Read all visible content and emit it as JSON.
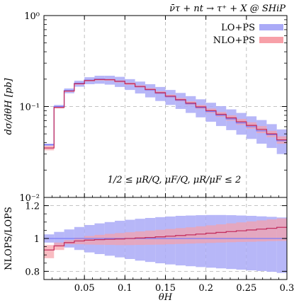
{
  "chart_data": [
    {
      "panel": "main",
      "type": "area",
      "title": "ν̄τ + nt → τ⁺ + X @ SHiP",
      "ylabel": "dσ/dθH [pb]",
      "yscale": "log",
      "ylim": [
        0.01,
        1
      ],
      "xlim": [
        0,
        0.3
      ],
      "y_ticks": [
        "10⁻²",
        "10⁻¹",
        "10⁰"
      ],
      "y_tick_values": [
        0.01,
        0.1,
        1
      ],
      "grid": true,
      "legend_position": "top-right",
      "annotation": "1/2 ≤ μR/Q, μF/Q, μR/μF ≤ 2",
      "x_bin_edges": [
        0,
        0.0125,
        0.025,
        0.0375,
        0.05,
        0.0625,
        0.075,
        0.0875,
        0.1,
        0.1125,
        0.125,
        0.1375,
        0.15,
        0.1625,
        0.175,
        0.1875,
        0.2,
        0.2125,
        0.225,
        0.2375,
        0.25,
        0.2625,
        0.275,
        0.2875,
        0.3
      ],
      "series": [
        {
          "name": "LO+PS",
          "color": "#7b7bf7",
          "band_color": "#aaaaf7",
          "central": [
            0.038,
            0.1,
            0.15,
            0.18,
            0.195,
            0.2,
            0.198,
            0.19,
            0.178,
            0.165,
            0.152,
            0.14,
            0.128,
            0.117,
            0.107,
            0.097,
            0.088,
            0.08,
            0.073,
            0.066,
            0.06,
            0.054,
            0.049,
            0.042
          ],
          "lower": [
            0.037,
            0.096,
            0.14,
            0.165,
            0.176,
            0.178,
            0.174,
            0.164,
            0.152,
            0.139,
            0.126,
            0.115,
            0.104,
            0.094,
            0.085,
            0.076,
            0.068,
            0.061,
            0.055,
            0.049,
            0.044,
            0.039,
            0.035,
            0.03
          ],
          "upper": [
            0.039,
            0.104,
            0.158,
            0.192,
            0.21,
            0.218,
            0.218,
            0.212,
            0.2,
            0.188,
            0.176,
            0.164,
            0.152,
            0.141,
            0.13,
            0.12,
            0.11,
            0.101,
            0.093,
            0.085,
            0.078,
            0.071,
            0.064,
            0.056
          ]
        },
        {
          "name": "NLO+PS",
          "color": "#c43060",
          "band_color": "#f7a0a8",
          "central": [
            0.035,
            0.098,
            0.148,
            0.178,
            0.193,
            0.198,
            0.197,
            0.189,
            0.178,
            0.166,
            0.154,
            0.142,
            0.13,
            0.119,
            0.109,
            0.099,
            0.09,
            0.082,
            0.075,
            0.068,
            0.062,
            0.056,
            0.05,
            0.043
          ],
          "lower": [
            0.033,
            0.095,
            0.145,
            0.174,
            0.189,
            0.193,
            0.192,
            0.184,
            0.173,
            0.161,
            0.149,
            0.137,
            0.125,
            0.114,
            0.104,
            0.094,
            0.085,
            0.077,
            0.07,
            0.063,
            0.057,
            0.051,
            0.046,
            0.039
          ],
          "upper": [
            0.037,
            0.101,
            0.151,
            0.182,
            0.197,
            0.203,
            0.202,
            0.194,
            0.183,
            0.171,
            0.159,
            0.147,
            0.135,
            0.124,
            0.114,
            0.104,
            0.095,
            0.087,
            0.08,
            0.073,
            0.067,
            0.061,
            0.054,
            0.047
          ]
        }
      ]
    },
    {
      "panel": "ratio",
      "type": "area",
      "ylabel": "NLOPS/LOPS",
      "xlabel": "θH",
      "ylim": [
        0.75,
        1.25
      ],
      "xlim": [
        0,
        0.3
      ],
      "y_ticks": [
        "0.8",
        "1",
        "1.2"
      ],
      "y_tick_values": [
        0.8,
        1.0,
        1.2
      ],
      "x_ticks": [
        "0.05",
        "0.1",
        "0.15",
        "0.2",
        "0.25",
        "0.3"
      ],
      "x_tick_values": [
        0.05,
        0.1,
        0.15,
        0.2,
        0.25,
        0.3
      ],
      "grid": true,
      "x_bin_edges": [
        0,
        0.0125,
        0.025,
        0.0375,
        0.05,
        0.0625,
        0.075,
        0.0875,
        0.1,
        0.1125,
        0.125,
        0.1375,
        0.15,
        0.1625,
        0.175,
        0.1875,
        0.2,
        0.2125,
        0.225,
        0.2375,
        0.25,
        0.2625,
        0.275,
        0.2875,
        0.3
      ],
      "series": [
        {
          "name": "LO+PS",
          "color": "#7b7bf7",
          "band_color": "#aaaaf7",
          "central": [
            1.0,
            1.0,
            1.0,
            1.0,
            1.0,
            1.0,
            1.0,
            1.0,
            1.0,
            1.0,
            1.0,
            1.0,
            1.0,
            1.0,
            1.0,
            1.0,
            1.0,
            1.0,
            1.0,
            1.0,
            1.0,
            1.0,
            1.0,
            1.0
          ],
          "lower": [
            0.975,
            0.96,
            0.945,
            0.93,
            0.915,
            0.905,
            0.895,
            0.885,
            0.875,
            0.865,
            0.857,
            0.849,
            0.842,
            0.836,
            0.831,
            0.826,
            0.822,
            0.818,
            0.814,
            0.81,
            0.806,
            0.802,
            0.797,
            0.79
          ],
          "upper": [
            1.025,
            1.04,
            1.055,
            1.07,
            1.082,
            1.092,
            1.1,
            1.108,
            1.114,
            1.12,
            1.125,
            1.13,
            1.134,
            1.138,
            1.14,
            1.142,
            1.143,
            1.143,
            1.142,
            1.14,
            1.138,
            1.135,
            1.132,
            1.128
          ]
        },
        {
          "name": "NLO+PS",
          "color": "#c43060",
          "band_color": "#f7a0a8",
          "central": [
            0.93,
            0.955,
            0.975,
            0.985,
            0.99,
            0.993,
            0.995,
            0.997,
            1.0,
            1.003,
            1.006,
            1.01,
            1.014,
            1.018,
            1.022,
            1.027,
            1.032,
            1.037,
            1.042,
            1.047,
            1.052,
            1.057,
            1.062,
            1.068
          ],
          "lower": [
            0.88,
            0.93,
            0.965,
            0.965,
            0.963,
            0.962,
            0.961,
            0.96,
            0.96,
            0.961,
            0.962,
            0.963,
            0.965,
            0.967,
            0.969,
            0.971,
            0.973,
            0.975,
            0.977,
            0.979,
            0.98,
            0.982,
            0.984,
            0.985
          ],
          "upper": [
            0.96,
            0.975,
            0.99,
            1.005,
            1.015,
            1.022,
            1.028,
            1.033,
            1.038,
            1.043,
            1.048,
            1.053,
            1.058,
            1.063,
            1.068,
            1.074,
            1.08,
            1.086,
            1.092,
            1.098,
            1.104,
            1.11,
            1.116,
            1.122
          ]
        }
      ]
    }
  ]
}
